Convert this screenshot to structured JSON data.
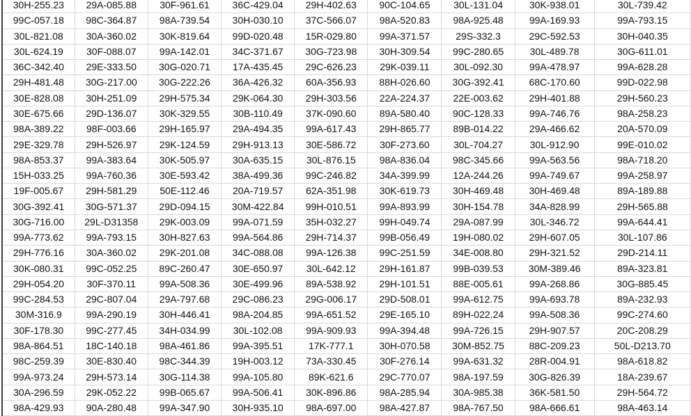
{
  "sheet": {
    "rows": [
      [
        "30H-255.23",
        "29A-085.88",
        "30F-961.61",
        "36C-429.04",
        "29H-402.63",
        "90C-104.65",
        "30L-131.04",
        "30K-938.01",
        "30L-739.42"
      ],
      [
        "99C-057.18",
        "98C-364.87",
        "98A-739.54",
        "30H-030.10",
        "37C-566.07",
        "98A-520.83",
        "98A-925.48",
        "99A-169.93",
        "99A-793.15"
      ],
      [
        "30L-821.08",
        "30A-360.02",
        "30K-819.64",
        "99D-020.48",
        "15R-029.80",
        "99A-371.57",
        "29S-332.3",
        "29C-592.53",
        "30H-040.35"
      ],
      [
        "30L-624.19",
        "30F-088.07",
        "99A-142.01",
        "34C-371.67",
        "30G-723.98",
        "30H-309.54",
        "99C-280.65",
        "30L-489.78",
        "30G-611.01"
      ],
      [
        "36C-342.40",
        "29E-333.50",
        "30G-020.71",
        "17A-435.45",
        "29C-626.23",
        "29K-039.11",
        "30L-092.30",
        "99A-478.97",
        "99A-628.28"
      ],
      [
        "29H-481.48",
        "30G-217.00",
        "30G-222.26",
        "36A-426.32",
        "60A-356.93",
        "88H-026.60",
        "30G-392.41",
        "68C-170.60",
        "99D-022.98"
      ],
      [
        "30E-828.08",
        "30H-251.09",
        "29H-575.34",
        "29K-064.30",
        "29H-303.56",
        "22A-224.37",
        "22E-003.62",
        "29H-401.88",
        "29H-560.23"
      ],
      [
        "30E-675.66",
        "29D-136.07",
        "30K-329.55",
        "30B-110.49",
        "37K-090.60",
        "89A-580.40",
        "90C-128.33",
        "99A-746.76",
        "98A-258.23"
      ],
      [
        "98A-389.22",
        "98F-003.66",
        "29H-165.97",
        "29A-494.35",
        "99A-617.43",
        "29H-865.77",
        "89B-014.22",
        "29A-466.62",
        "20A-570.09"
      ],
      [
        "29E-329.78",
        "29H-526.97",
        "29K-124.59",
        "29H-913.13",
        "30E-586.72",
        "30F-273.60",
        "30L-704.27",
        "30L-912.90",
        "99E-010.02"
      ],
      [
        "98A-853.37",
        "99A-383.64",
        "30K-505.97",
        "30A-635.15",
        "30L-876.15",
        "98A-836.04",
        "98C-345.66",
        "99A-563.56",
        "98A-718.20"
      ],
      [
        "15H-033.25",
        "99A-760.36",
        "30E-593.42",
        "38A-499.36",
        "99C-246.82",
        "34A-399.99",
        "12A-244.26",
        "99A-749.67",
        "99A-258.97"
      ],
      [
        "19F-005.67",
        "29H-581.29",
        "50E-112.46",
        "20A-719.57",
        "62A-351.98",
        "30K-619.73",
        "30H-469.48",
        "30H-469.48",
        "89A-189.88"
      ],
      [
        "30G-392.41",
        "30G-571.37",
        "29D-094.15",
        "30M-422.84",
        "99H-010.51",
        "99A-893.99",
        "30H-154.78",
        "34A-828.99",
        "29H-565.88"
      ],
      [
        "30G-716.00",
        "29L-D31358",
        "29K-003.09",
        "99A-071.59",
        "35H-032.27",
        "99H-049.74",
        "29A-087.99",
        "30L-346.72",
        "99A-644.41"
      ],
      [
        "99A-773.62",
        "99A-793.15",
        "30H-827.63",
        "99A-564.86",
        "29H-714.37",
        "99B-056.49",
        "19H-080.02",
        "29H-607.05",
        "30L-107.86"
      ],
      [
        "29H-776.16",
        "30A-360.02",
        "29K-201.08",
        "34C-088.08",
        "99A-126.38",
        "99C-251.59",
        "34E-008.80",
        "29H-321.52",
        "29D-214.11"
      ],
      [
        "30K-080.31",
        "99C-052.25",
        "89C-260.47",
        "30E-650.97",
        "30L-642.12",
        "29H-161.87",
        "99B-039.53",
        "30M-389.46",
        "89A-323.81"
      ],
      [
        "29H-054.20",
        "30F-370.11",
        "99A-508.36",
        "30E-499.96",
        "89A-538.92",
        "29H-101.51",
        "88E-005.61",
        "99A-268.86",
        "30G-885.45"
      ],
      [
        "99C-284.53",
        "29C-807.04",
        "29A-797.68",
        "29C-086.23",
        "29G-006.17",
        "29D-508.01",
        "99A-612.75",
        "99A-693.78",
        "89A-232.93"
      ],
      [
        "30M-316.9",
        "99A-290.19",
        "30H-446.41",
        "98A-204.85",
        "99A-651.52",
        "29E-165.10",
        "89H-022.24",
        "99A-508.36",
        "99C-274.60"
      ],
      [
        "30F-178.30",
        "99C-277.45",
        "34H-034.99",
        "30L-102.08",
        "99A-909.93",
        "99A-394.48",
        "99A-726.15",
        "29H-907.57",
        "20C-208.29"
      ],
      [
        "98A-864.51",
        "18C-140.18",
        "98A-461.86",
        "99A-395.51",
        "17K-777.1",
        "30H-070.58",
        "30M-852.75",
        "88C-209.23",
        "50L-D213.70"
      ],
      [
        "98C-259.39",
        "30E-830.40",
        "98C-344.39",
        "19H-003.12",
        "73A-330.45",
        "30F-276.14",
        "99A-631.32",
        "28R-004.91",
        "98A-618.82"
      ],
      [
        "99A-973.24",
        "29H-573.14",
        "30G-114.38",
        "99A-105.80",
        "89K-621.6",
        "29C-770.07",
        "98A-197.59",
        "30G-826.39",
        "18A-239.67"
      ],
      [
        "30A-296.59",
        "29K-052.22",
        "99B-065.67",
        "99A-506.41",
        "30K-896.86",
        "98A-285.94",
        "30A-985.38",
        "36K-581.50",
        "29H-564.72"
      ],
      [
        "98A-429.93",
        "90A-280.48",
        "99A-347.90",
        "30H-935.10",
        "98A-697.00",
        "98A-427.87",
        "98A-767.50",
        "98A-666.61",
        "98A-463.14"
      ]
    ]
  }
}
